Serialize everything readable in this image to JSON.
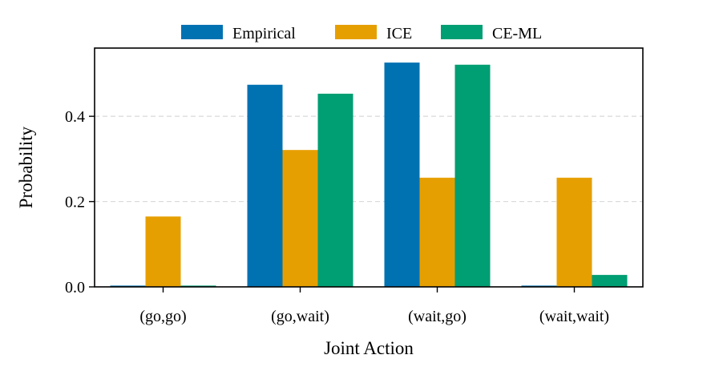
{
  "chart_data": {
    "type": "bar",
    "title": "",
    "xlabel": "Joint Action",
    "ylabel": "Probability",
    "categories": [
      "(go,go)",
      "(go,wait)",
      "(wait,go)",
      "(wait,wait)"
    ],
    "series": [
      {
        "name": "Empirical",
        "color": "#0072B2",
        "values": [
          0.003,
          0.474,
          0.526,
          0.003
        ]
      },
      {
        "name": "ICE",
        "color": "#E69F00",
        "values": [
          0.165,
          0.321,
          0.256,
          0.256
        ]
      },
      {
        "name": "CE-ML",
        "color": "#009E73",
        "values": [
          0.003,
          0.453,
          0.521,
          0.028
        ]
      }
    ],
    "ylim": [
      0,
      0.56
    ],
    "yticks": [
      0.0,
      0.2,
      0.4
    ],
    "ytick_labels": [
      "0.0",
      "0.2",
      "0.4"
    ],
    "grid": "horizontal dashed",
    "legend_position": "top-center"
  }
}
